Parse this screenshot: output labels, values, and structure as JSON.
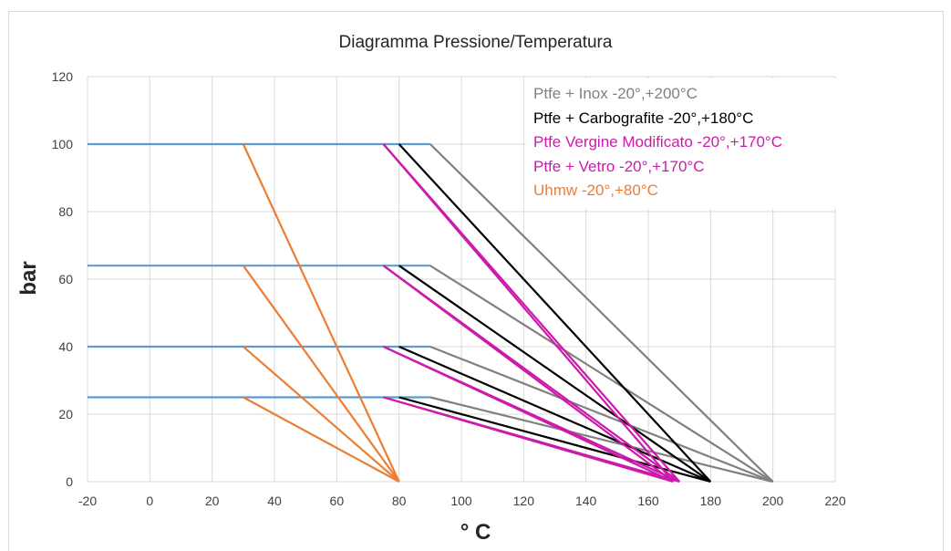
{
  "chart_data": {
    "type": "line",
    "title": "Diagramma Pressione/Temperatura",
    "xlabel": "° C",
    "ylabel": "bar",
    "xlim": [
      -20,
      220
    ],
    "ylim": [
      0,
      120
    ],
    "xticks": [
      "-20",
      "0",
      "20",
      "40",
      "60",
      "80",
      "100",
      "120",
      "140",
      "160",
      "180",
      "200",
      "220"
    ],
    "yticks": [
      "0",
      "20",
      "40",
      "60",
      "80",
      "100",
      "120"
    ],
    "grid": true,
    "legend_position": "top-right",
    "pressure_levels": [
      {
        "pressure": 100,
        "line_color": "#5b9bd5",
        "line_x": [
          -20,
          90
        ]
      },
      {
        "pressure": 64,
        "line_color": "#5b9bd5",
        "line_x": [
          -20,
          90
        ]
      },
      {
        "pressure": 40,
        "line_color": "#5b9bd5",
        "line_x": [
          -20,
          90
        ]
      },
      {
        "pressure": 25,
        "line_color": "#5b9bd5",
        "line_x": [
          -20,
          90
        ]
      }
    ],
    "series": [
      {
        "name": "Ptfe + Inox -20°,+200°C",
        "color": "#808080",
        "max_temp": 200,
        "lines": [
          {
            "x": [
              90,
              200
            ],
            "y": [
              100,
              0
            ]
          },
          {
            "x": [
              90,
              200
            ],
            "y": [
              64,
              0
            ]
          },
          {
            "x": [
              90,
              200
            ],
            "y": [
              40,
              0
            ]
          },
          {
            "x": [
              90,
              200
            ],
            "y": [
              25,
              0
            ]
          }
        ]
      },
      {
        "name": "Ptfe + Carbografite -20°,+180°C",
        "color": "#000000",
        "max_temp": 180,
        "lines": [
          {
            "x": [
              80,
              180
            ],
            "y": [
              100,
              0
            ]
          },
          {
            "x": [
              80,
              180
            ],
            "y": [
              64,
              0
            ]
          },
          {
            "x": [
              80,
              180
            ],
            "y": [
              40,
              0
            ]
          },
          {
            "x": [
              80,
              180
            ],
            "y": [
              25,
              0
            ]
          }
        ]
      },
      {
        "name": "Ptfe Vergine Modificato -20°,+170°C",
        "color": "#cc1aaa",
        "max_temp": 170,
        "lines": [
          {
            "x": [
              75,
              170
            ],
            "y": [
              100,
              0
            ]
          },
          {
            "x": [
              75,
              170
            ],
            "y": [
              64,
              0
            ]
          },
          {
            "x": [
              75,
              170
            ],
            "y": [
              40,
              0
            ]
          },
          {
            "x": [
              75,
              170
            ],
            "y": [
              25,
              0
            ]
          }
        ]
      },
      {
        "name": "Ptfe + Vetro -20°,+170°C",
        "color": "#cc1aaa",
        "max_temp": 170,
        "lines": [
          {
            "x": [
              75,
              168
            ],
            "y": [
              100,
              0
            ]
          },
          {
            "x": [
              75,
              168
            ],
            "y": [
              64,
              0
            ]
          },
          {
            "x": [
              75,
              168
            ],
            "y": [
              40,
              0
            ]
          },
          {
            "x": [
              75,
              168
            ],
            "y": [
              25,
              0
            ]
          }
        ]
      },
      {
        "name": "Uhmw -20°,+80°C",
        "color": "#ed7d31",
        "max_temp": 80,
        "lines": [
          {
            "x": [
              30,
              80
            ],
            "y": [
              100,
              0
            ]
          },
          {
            "x": [
              30,
              80
            ],
            "y": [
              64,
              0
            ]
          },
          {
            "x": [
              30,
              80
            ],
            "y": [
              40,
              0
            ]
          },
          {
            "x": [
              30,
              80
            ],
            "y": [
              25,
              0
            ]
          }
        ]
      }
    ]
  }
}
